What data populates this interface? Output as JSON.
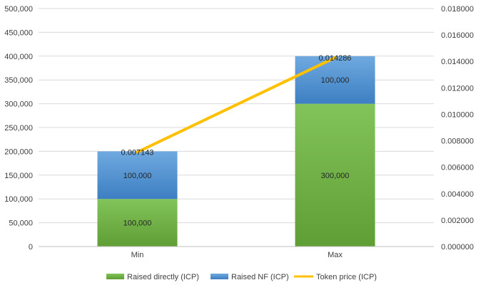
{
  "chart_data": {
    "type": "bar",
    "stacked": true,
    "categories": [
      "Min",
      "Max"
    ],
    "series": [
      {
        "name": "Raised directly (ICP)",
        "kind": "bar",
        "axis": "left",
        "color": "#70ad47",
        "values": [
          100000,
          300000
        ],
        "labels": [
          "100,000",
          "300,000"
        ]
      },
      {
        "name": "Raised NF (ICP)",
        "kind": "bar",
        "axis": "left",
        "color": "#5b9bd5",
        "values": [
          100000,
          100000
        ],
        "labels": [
          "100,000",
          "100,000"
        ]
      },
      {
        "name": "Token price (ICP)",
        "kind": "line",
        "axis": "right",
        "color": "#ffc000",
        "values": [
          0.007143,
          0.014286
        ],
        "labels": [
          "0.007143",
          "0.014286"
        ]
      }
    ],
    "y_left": {
      "range": [
        0,
        500000
      ],
      "ticks": [
        0,
        50000,
        100000,
        150000,
        200000,
        250000,
        300000,
        350000,
        400000,
        450000,
        500000
      ],
      "tick_labels": [
        "0",
        "50,000",
        "100,000",
        "150,000",
        "200,000",
        "250,000",
        "300,000",
        "350,000",
        "400,000",
        "450,000",
        "500,000"
      ]
    },
    "y_right": {
      "range": [
        0,
        0.018
      ],
      "ticks": [
        0,
        0.002,
        0.004,
        0.006,
        0.008,
        0.01,
        0.012,
        0.014,
        0.016,
        0.018
      ],
      "tick_labels": [
        "0.000000",
        "0.002000",
        "0.004000",
        "0.006000",
        "0.008000",
        "0.010000",
        "0.012000",
        "0.014000",
        "0.016000",
        "0.018000"
      ]
    },
    "grid": true,
    "legend": "bottom"
  }
}
